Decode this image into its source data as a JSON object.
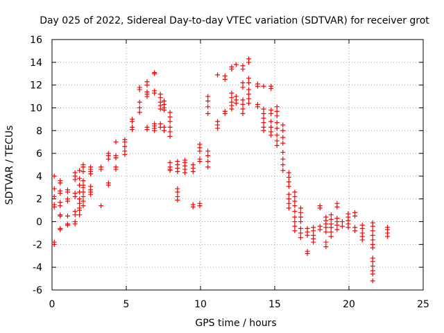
{
  "chart_data": {
    "type": "scatter",
    "title": "Day 025 of 2022, Sidereal Day-to-day VTEC variation (SDTVAR) for receiver grot",
    "xlabel": "GPS time / hours",
    "ylabel": "SDTVAR / TECUs",
    "xlim": [
      0,
      25
    ],
    "ylim": [
      -6,
      16
    ],
    "xticks": [
      0,
      5,
      10,
      15,
      20,
      25
    ],
    "xtick_labels": [
      "0",
      "5",
      "10",
      "15",
      "20",
      "25"
    ],
    "yticks": [
      -6,
      -4,
      -2,
      0,
      2,
      4,
      6,
      8,
      10,
      12,
      14,
      16
    ],
    "ytick_labels": [
      "-6",
      "-4",
      "-2",
      "0",
      "2",
      "4",
      "6",
      "8",
      "10",
      "12",
      "14",
      "16"
    ],
    "grid": true,
    "marker": "plus",
    "color": "#ff0000",
    "series": [
      {
        "name": "SDTVAR",
        "clusters": [
          {
            "x": 0.15,
            "y": [
              4.0,
              2.9,
              2.2,
              1.5,
              1.3,
              -1.8,
              -2.0
            ]
          },
          {
            "x": 0.55,
            "y": [
              3.6,
              3.4,
              2.7,
              2.5,
              1.7,
              1.4,
              0.6,
              0.5,
              -0.6,
              -0.7
            ]
          },
          {
            "x": 1.05,
            "y": [
              2.8,
              2.6,
              2.0,
              1.8,
              0.5,
              -0.2,
              -0.3
            ]
          },
          {
            "x": 1.55,
            "y": [
              4.3,
              4.0,
              3.7,
              2.5,
              2.2,
              0.9,
              0.6,
              0.0,
              -0.2
            ]
          },
          {
            "x": 1.85,
            "y": [
              4.5,
              3.8,
              3.2,
              2.6,
              2.0,
              1.6,
              1.2,
              1.0,
              0.6
            ]
          },
          {
            "x": 2.1,
            "y": [
              5.0,
              4.8,
              4.4,
              3.6,
              3.2,
              3.0,
              2.6,
              2.2,
              1.8,
              1.4
            ]
          },
          {
            "x": 2.6,
            "y": [
              4.8,
              4.6,
              4.4,
              4.2,
              3.1,
              2.8,
              2.6,
              2.4
            ]
          },
          {
            "x": 3.3,
            "y": [
              4.8,
              4.6,
              1.4
            ]
          },
          {
            "x": 3.8,
            "y": [
              6.0,
              5.8,
              5.5,
              3.4,
              3.2
            ]
          },
          {
            "x": 4.3,
            "y": [
              7.0,
              5.8,
              5.6,
              4.8,
              4.6
            ]
          },
          {
            "x": 4.9,
            "y": [
              7.2,
              7.0,
              6.6,
              6.2,
              5.9
            ]
          },
          {
            "x": 5.4,
            "y": [
              9.0,
              8.8,
              8.3,
              8.1
            ]
          },
          {
            "x": 5.9,
            "y": [
              11.8,
              11.6,
              10.5,
              10.0,
              9.6
            ]
          },
          {
            "x": 6.4,
            "y": [
              12.3,
              12.0,
              11.4,
              11.2,
              11.0,
              8.3,
              8.1
            ]
          },
          {
            "x": 6.9,
            "y": [
              13.1,
              13.0,
              11.5,
              11.3,
              8.6,
              8.4,
              8.2,
              8.0
            ]
          },
          {
            "x": 7.3,
            "y": [
              11.2,
              10.9,
              10.5,
              10.2,
              9.9,
              8.6,
              8.3
            ]
          },
          {
            "x": 7.55,
            "y": [
              10.6,
              10.3,
              10.0,
              9.8,
              8.3,
              8.0
            ]
          },
          {
            "x": 7.95,
            "y": [
              9.6,
              9.2,
              8.8,
              8.3,
              7.9,
              7.5,
              5.2,
              4.8,
              4.6,
              4.5
            ]
          },
          {
            "x": 8.45,
            "y": [
              5.3,
              5.0,
              4.7,
              4.4,
              2.9,
              2.6,
              2.2,
              1.9
            ]
          },
          {
            "x": 8.95,
            "y": [
              5.4,
              5.2,
              4.9,
              4.6,
              4.3
            ]
          },
          {
            "x": 9.5,
            "y": [
              5.0,
              4.7,
              4.4,
              1.5,
              1.3
            ]
          },
          {
            "x": 9.95,
            "y": [
              6.8,
              6.5,
              6.2,
              5.5,
              5.3,
              1.6,
              1.4
            ]
          },
          {
            "x": 10.5,
            "y": [
              11.0,
              10.6,
              10.1,
              9.5,
              6.2,
              5.8,
              5.3,
              4.8
            ]
          },
          {
            "x": 11.15,
            "y": [
              12.9,
              8.8,
              8.5,
              8.2
            ]
          },
          {
            "x": 11.65,
            "y": [
              12.8,
              12.5,
              9.7,
              9.5
            ]
          },
          {
            "x": 12.1,
            "y": [
              13.6,
              13.4,
              11.3,
              10.9,
              10.5,
              10.2,
              9.9
            ]
          },
          {
            "x": 12.4,
            "y": [
              13.8,
              11.0,
              10.7,
              10.4
            ]
          },
          {
            "x": 12.85,
            "y": [
              13.7,
              13.4,
              12.2,
              11.8,
              10.7,
              10.3,
              9.9,
              9.5
            ]
          },
          {
            "x": 13.25,
            "y": [
              14.3,
              14.0,
              12.6,
              12.2,
              11.6,
              11.2,
              10.8,
              10.4
            ]
          },
          {
            "x": 13.85,
            "y": [
              12.1,
              11.9,
              10.3,
              10.1
            ]
          },
          {
            "x": 14.25,
            "y": [
              11.9,
              9.9,
              9.5,
              9.1,
              8.7,
              8.3,
              8.0
            ]
          },
          {
            "x": 14.75,
            "y": [
              11.9,
              11.7,
              9.8,
              9.5,
              8.8,
              8.3,
              7.9,
              7.6
            ]
          },
          {
            "x": 15.15,
            "y": [
              10.1,
              9.7,
              9.3,
              8.7,
              8.2,
              7.6,
              7.1,
              6.7
            ]
          },
          {
            "x": 15.55,
            "y": [
              8.5,
              8.0,
              7.4,
              6.9,
              6.1,
              5.5,
              5.0,
              4.5
            ]
          },
          {
            "x": 15.95,
            "y": [
              4.3,
              3.9,
              3.5,
              3.1,
              2.4,
              2.0,
              1.6,
              1.2
            ]
          },
          {
            "x": 16.35,
            "y": [
              2.6,
              2.2,
              1.8,
              1.4,
              0.9,
              0.4,
              0.0,
              -0.4,
              -0.8
            ]
          },
          {
            "x": 16.75,
            "y": [
              1.2,
              0.8,
              0.4,
              0.0,
              -0.6,
              -1.0,
              -1.4
            ]
          },
          {
            "x": 17.2,
            "y": [
              -0.6,
              -0.9,
              -1.2,
              -2.6,
              -2.8
            ]
          },
          {
            "x": 17.6,
            "y": [
              -0.5,
              -0.8,
              -1.2,
              -1.5,
              -1.8
            ]
          },
          {
            "x": 18.05,
            "y": [
              1.4,
              1.2,
              -0.4,
              -0.7
            ]
          },
          {
            "x": 18.45,
            "y": [
              0.4,
              0.1,
              -0.2,
              -0.5,
              -0.9,
              -1.8,
              -2.2
            ]
          },
          {
            "x": 18.8,
            "y": [
              0.6,
              0.2,
              -0.2,
              -0.5,
              -0.9,
              -1.3
            ]
          },
          {
            "x": 19.2,
            "y": [
              1.6,
              1.3,
              0.3,
              0.0,
              -0.3,
              -0.7
            ]
          },
          {
            "x": 19.55,
            "y": [
              0.0,
              -0.4
            ]
          },
          {
            "x": 19.95,
            "y": [
              0.7,
              0.4,
              0.1,
              -0.2,
              -0.5
            ]
          },
          {
            "x": 20.4,
            "y": [
              0.8,
              0.5,
              -0.5,
              -0.8
            ]
          },
          {
            "x": 20.9,
            "y": [
              -0.3,
              -0.6,
              -1.0,
              -1.3,
              -1.6
            ]
          },
          {
            "x": 21.6,
            "y": [
              -0.1,
              -0.4,
              -0.8,
              -1.2,
              -1.6,
              -2.0,
              -2.3,
              -3.2,
              -3.5,
              -3.9,
              -4.3,
              -4.6,
              -5.2
            ]
          },
          {
            "x": 22.6,
            "y": [
              -0.5,
              -0.7,
              -1.0,
              -1.3
            ]
          }
        ]
      }
    ]
  }
}
